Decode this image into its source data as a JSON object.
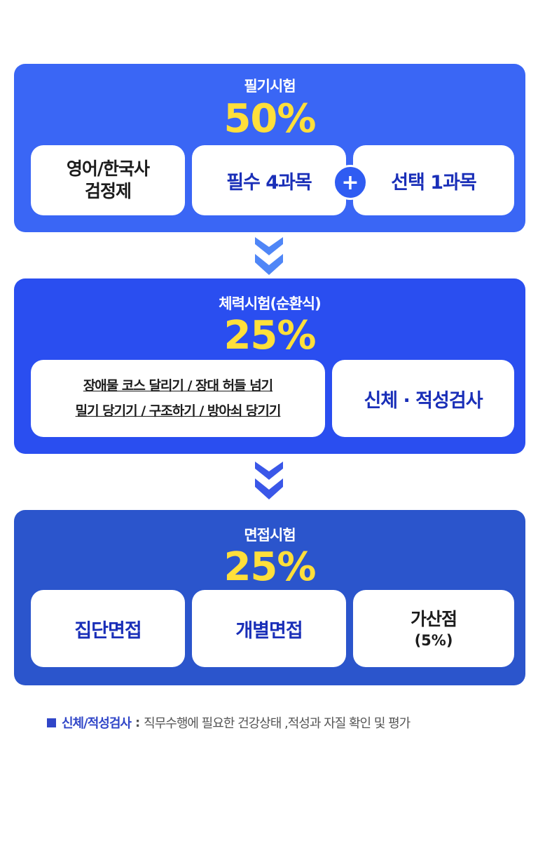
{
  "stage1": {
    "title": "필기시험",
    "percent": "50%",
    "card1": {
      "line1": "영어/한국사",
      "line2": "검정제"
    },
    "card2": "필수 4과목",
    "plus": "+",
    "card3": "선택 1과목"
  },
  "stage2": {
    "title": "체력시험(순환식)",
    "percent": "25%",
    "events": {
      "line1": "장애물 코스 달리기 / 장대 허들 넘기",
      "line2": "밀기 당기기 / 구조하기 / 방아쇠 당기기"
    },
    "card2": "신체 · 적성검사"
  },
  "stage3": {
    "title": "면접시험",
    "percent": "25%",
    "card1": "집단면접",
    "card2": "개별면접",
    "card3": {
      "line1": "가산점",
      "line2": "(5%)"
    }
  },
  "note": {
    "term": "신체/적성검사",
    "separator": ":",
    "description": "직무수행에 필요한 건강상태 ,적성과 자질 확인 및 평가"
  },
  "colors": {
    "panel1": "#3a66f5",
    "panel2": "#2a4ef0",
    "panel3": "#2b55cc",
    "percent": "#ffdf3a",
    "accent_text": "#1a2fb8"
  },
  "icons": [
    "plus-icon",
    "chevron-double-down-icon"
  ]
}
